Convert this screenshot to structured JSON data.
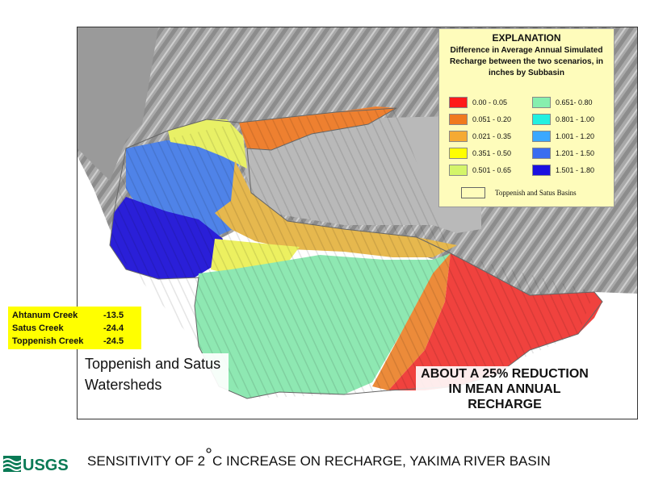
{
  "legend": {
    "title": "EXPLANATION",
    "subtitle": "Difference in Average Annual Simulated Recharge between the two scenarios, in inches by Subbasin",
    "ranges": [
      {
        "label": "0.00 - 0.05",
        "color": "#ff1a1a"
      },
      {
        "label": "0.051 - 0.20",
        "color": "#f07a1e"
      },
      {
        "label": "0.021 - 0.35",
        "color": "#f5aa33"
      },
      {
        "label": "0.351 - 0.50",
        "color": "#ffff00"
      },
      {
        "label": "0.501 - 0.65",
        "color": "#d4f56a"
      },
      {
        "label": "0.651- 0.80",
        "color": "#86efae"
      },
      {
        "label": "0.801 - 1.00",
        "color": "#22f0e0"
      },
      {
        "label": "1.001 - 1.20",
        "color": "#3aa8ff"
      },
      {
        "label": "1.201 - 1.50",
        "color": "#3a6df0"
      },
      {
        "label": "1.501 - 1.80",
        "color": "#1a10e0"
      }
    ],
    "basin_label": "Toppenish and Satus Basins"
  },
  "creeks": [
    {
      "name": "Ahtanum Creek",
      "value": "-13.5"
    },
    {
      "name": "Satus Creek",
      "value": "-24.4"
    },
    {
      "name": "Toppenish Creek",
      "value": "-24.5"
    }
  ],
  "watershed_label": "Toppenish and Satus Watersheds",
  "reduction_note": "ABOUT A 25% REDUCTION IN MEAN ANNUAL RECHARGE",
  "footer": {
    "title_pre": "SENSITIVITY OF 2",
    "degree": "°",
    "title_post": "C INCREASE ON RECHARGE, YAKIMA RIVER BASIN"
  },
  "logo_text": "USGS"
}
